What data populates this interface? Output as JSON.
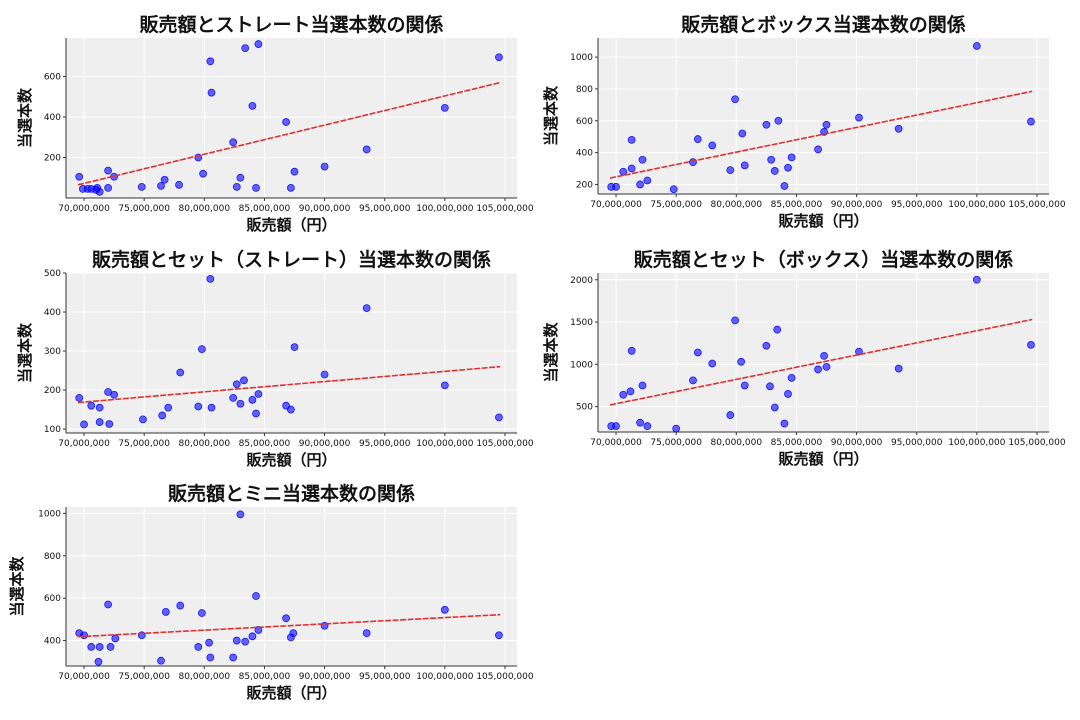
{
  "chart_data": [
    {
      "type": "scatter",
      "title": "販売額とストレート当選本数の関係",
      "xlabel": "販売額（円）",
      "ylabel": "当選本数",
      "xlim": [
        68500000,
        106000000
      ],
      "ylim": [
        0,
        790
      ],
      "xticks": [
        70000000,
        75000000,
        80000000,
        85000000,
        90000000,
        95000000,
        100000000,
        105000000
      ],
      "xtick_labels": [
        "70,000,000",
        "75,000,000",
        "80,000,000",
        "85,000,000",
        "90,000,000",
        "95,000,000",
        "100,000,000",
        "105,000,000"
      ],
      "yticks": [
        200,
        400,
        600
      ],
      "ytick_labels": [
        "200",
        "400",
        "600"
      ],
      "grid": true,
      "point_color": "#0000ff",
      "trend_color": "#e03030",
      "trend": [
        [
          69500000,
          65
        ],
        [
          104600000,
          570
        ]
      ],
      "points": [
        [
          69600000,
          105
        ],
        [
          69900000,
          45
        ],
        [
          70300000,
          45
        ],
        [
          70600000,
          45
        ],
        [
          71000000,
          40
        ],
        [
          71100000,
          50
        ],
        [
          71300000,
          30
        ],
        [
          72000000,
          50
        ],
        [
          72000000,
          135
        ],
        [
          72500000,
          105
        ],
        [
          74800000,
          55
        ],
        [
          76400000,
          60
        ],
        [
          76700000,
          90
        ],
        [
          77900000,
          65
        ],
        [
          79500000,
          200
        ],
        [
          79900000,
          120
        ],
        [
          80500000,
          675
        ],
        [
          80600000,
          520
        ],
        [
          82400000,
          275
        ],
        [
          82700000,
          55
        ],
        [
          83000000,
          100
        ],
        [
          83400000,
          740
        ],
        [
          84000000,
          455
        ],
        [
          84300000,
          50
        ],
        [
          84500000,
          760
        ],
        [
          86800000,
          375
        ],
        [
          87200000,
          50
        ],
        [
          87500000,
          130
        ],
        [
          90000000,
          155
        ],
        [
          93500000,
          240
        ],
        [
          100000000,
          445
        ],
        [
          104500000,
          695
        ]
      ]
    },
    {
      "type": "scatter",
      "title": "販売額とボックス当選本数の関係",
      "xlabel": "販売額（円）",
      "ylabel": "当選本数",
      "xlim": [
        68500000,
        106000000
      ],
      "ylim": [
        140,
        1120
      ],
      "xticks": [
        70000000,
        75000000,
        80000000,
        85000000,
        90000000,
        95000000,
        100000000,
        105000000
      ],
      "xtick_labels": [
        "70,000,000",
        "75,000,000",
        "80,000,000",
        "85,000,000",
        "90,000,000",
        "95,000,000",
        "100,000,000",
        "105,000,000"
      ],
      "yticks": [
        200,
        400,
        600,
        800,
        1000
      ],
      "ytick_labels": [
        "200",
        "400",
        "600",
        "800",
        "1000"
      ],
      "grid": true,
      "point_color": "#0000ff",
      "trend_color": "#e03030",
      "trend": [
        [
          69500000,
          240
        ],
        [
          104600000,
          785
        ]
      ],
      "points": [
        [
          69600000,
          185
        ],
        [
          70000000,
          185
        ],
        [
          70600000,
          280
        ],
        [
          71300000,
          300
        ],
        [
          71300000,
          480
        ],
        [
          72000000,
          200
        ],
        [
          72200000,
          355
        ],
        [
          72600000,
          225
        ],
        [
          74800000,
          170
        ],
        [
          76400000,
          340
        ],
        [
          76800000,
          485
        ],
        [
          78000000,
          445
        ],
        [
          79500000,
          290
        ],
        [
          79900000,
          735
        ],
        [
          80500000,
          520
        ],
        [
          80700000,
          320
        ],
        [
          82500000,
          575
        ],
        [
          82900000,
          355
        ],
        [
          83200000,
          285
        ],
        [
          83500000,
          600
        ],
        [
          84000000,
          190
        ],
        [
          84300000,
          305
        ],
        [
          84600000,
          370
        ],
        [
          86800000,
          420
        ],
        [
          87300000,
          530
        ],
        [
          87500000,
          575
        ],
        [
          90200000,
          620
        ],
        [
          93500000,
          550
        ],
        [
          100000000,
          1070
        ],
        [
          104500000,
          595
        ]
      ]
    },
    {
      "type": "scatter",
      "title": "販売額とセット（ストレート）当選本数の関係",
      "xlabel": "販売額（円）",
      "ylabel": "当選本数",
      "xlim": [
        68500000,
        106000000
      ],
      "ylim": [
        90,
        500
      ],
      "xticks": [
        70000000,
        75000000,
        80000000,
        85000000,
        90000000,
        95000000,
        100000000,
        105000000
      ],
      "xtick_labels": [
        "70,000,000",
        "75,000,000",
        "80,000,000",
        "85,000,000",
        "90,000,000",
        "95,000,000",
        "100,000,000",
        "105,000,000"
      ],
      "yticks": [
        100,
        200,
        300,
        400,
        500
      ],
      "ytick_labels": [
        "100",
        "200",
        "300",
        "400",
        "500"
      ],
      "grid": true,
      "point_color": "#0000ff",
      "trend_color": "#e03030",
      "trend": [
        [
          69500000,
          168
        ],
        [
          104600000,
          260
        ]
      ],
      "points": [
        [
          69600000,
          180
        ],
        [
          70000000,
          112
        ],
        [
          70600000,
          160
        ],
        [
          71300000,
          155
        ],
        [
          71300000,
          118
        ],
        [
          72000000,
          195
        ],
        [
          72100000,
          113
        ],
        [
          72500000,
          188
        ],
        [
          74900000,
          125
        ],
        [
          76500000,
          135
        ],
        [
          77000000,
          155
        ],
        [
          78000000,
          245
        ],
        [
          79500000,
          158
        ],
        [
          79800000,
          305
        ],
        [
          80500000,
          485
        ],
        [
          80600000,
          155
        ],
        [
          82400000,
          180
        ],
        [
          82700000,
          215
        ],
        [
          83000000,
          165
        ],
        [
          83300000,
          225
        ],
        [
          84000000,
          175
        ],
        [
          84300000,
          140
        ],
        [
          84500000,
          190
        ],
        [
          86800000,
          160
        ],
        [
          87200000,
          150
        ],
        [
          87500000,
          310
        ],
        [
          90000000,
          240
        ],
        [
          93500000,
          410
        ],
        [
          100000000,
          212
        ],
        [
          104500000,
          130
        ]
      ]
    },
    {
      "type": "scatter",
      "title": "販売額とセット（ボックス）当選本数の関係",
      "xlabel": "販売額（円）",
      "ylabel": "当選本数",
      "xlim": [
        68500000,
        106000000
      ],
      "ylim": [
        200,
        2080
      ],
      "xticks": [
        70000000,
        75000000,
        80000000,
        85000000,
        90000000,
        95000000,
        100000000,
        105000000
      ],
      "xtick_labels": [
        "70,000,000",
        "75,000,000",
        "80,000,000",
        "85,000,000",
        "90,000,000",
        "95,000,000",
        "100,000,000",
        "105,000,000"
      ],
      "yticks": [
        500,
        1000,
        1500,
        2000
      ],
      "ytick_labels": [
        "500",
        "1000",
        "1500",
        "2000"
      ],
      "grid": true,
      "point_color": "#0000ff",
      "trend_color": "#e03030",
      "trend": [
        [
          69500000,
          520
        ],
        [
          104600000,
          1530
        ]
      ],
      "points": [
        [
          69600000,
          270
        ],
        [
          70000000,
          270
        ],
        [
          70600000,
          640
        ],
        [
          71200000,
          680
        ],
        [
          71300000,
          1160
        ],
        [
          72000000,
          310
        ],
        [
          72200000,
          750
        ],
        [
          72600000,
          270
        ],
        [
          75000000,
          240
        ],
        [
          76400000,
          810
        ],
        [
          76800000,
          1140
        ],
        [
          78000000,
          1010
        ],
        [
          79500000,
          400
        ],
        [
          79900000,
          1520
        ],
        [
          80400000,
          1030
        ],
        [
          80700000,
          750
        ],
        [
          82500000,
          1220
        ],
        [
          82800000,
          740
        ],
        [
          83200000,
          490
        ],
        [
          83400000,
          1410
        ],
        [
          84000000,
          300
        ],
        [
          84300000,
          650
        ],
        [
          84600000,
          840
        ],
        [
          86800000,
          940
        ],
        [
          87300000,
          1100
        ],
        [
          87500000,
          970
        ],
        [
          90200000,
          1150
        ],
        [
          93500000,
          950
        ],
        [
          100000000,
          2000
        ],
        [
          104500000,
          1230
        ]
      ]
    },
    {
      "type": "scatter",
      "title": "販売額とミニ当選本数の関係",
      "xlabel": "販売額（円）",
      "ylabel": "当選本数",
      "xlim": [
        68500000,
        106000000
      ],
      "ylim": [
        280,
        1030
      ],
      "xticks": [
        70000000,
        75000000,
        80000000,
        85000000,
        90000000,
        95000000,
        100000000,
        105000000
      ],
      "xtick_labels": [
        "70,000,000",
        "75,000,000",
        "80,000,000",
        "85,000,000",
        "90,000,000",
        "95,000,000",
        "100,000,000",
        "105,000,000"
      ],
      "yticks": [
        400,
        600,
        800,
        1000
      ],
      "ytick_labels": [
        "400",
        "600",
        "800",
        "1000"
      ],
      "grid": true,
      "point_color": "#0000ff",
      "trend_color": "#e03030",
      "trend": [
        [
          69500000,
          418
        ],
        [
          104600000,
          522
        ]
      ],
      "points": [
        [
          69600000,
          435
        ],
        [
          70000000,
          425
        ],
        [
          70600000,
          370
        ],
        [
          71200000,
          300
        ],
        [
          71300000,
          370
        ],
        [
          72000000,
          570
        ],
        [
          72200000,
          370
        ],
        [
          72600000,
          410
        ],
        [
          74800000,
          425
        ],
        [
          76400000,
          305
        ],
        [
          76800000,
          535
        ],
        [
          78000000,
          565
        ],
        [
          79500000,
          370
        ],
        [
          79800000,
          530
        ],
        [
          80400000,
          390
        ],
        [
          80500000,
          320
        ],
        [
          82400000,
          320
        ],
        [
          82700000,
          400
        ],
        [
          83000000,
          995
        ],
        [
          83400000,
          395
        ],
        [
          84000000,
          420
        ],
        [
          84300000,
          610
        ],
        [
          84500000,
          450
        ],
        [
          86800000,
          505
        ],
        [
          87200000,
          415
        ],
        [
          87400000,
          435
        ],
        [
          90000000,
          470
        ],
        [
          93500000,
          435
        ],
        [
          100000000,
          545
        ],
        [
          104500000,
          425
        ]
      ]
    }
  ]
}
